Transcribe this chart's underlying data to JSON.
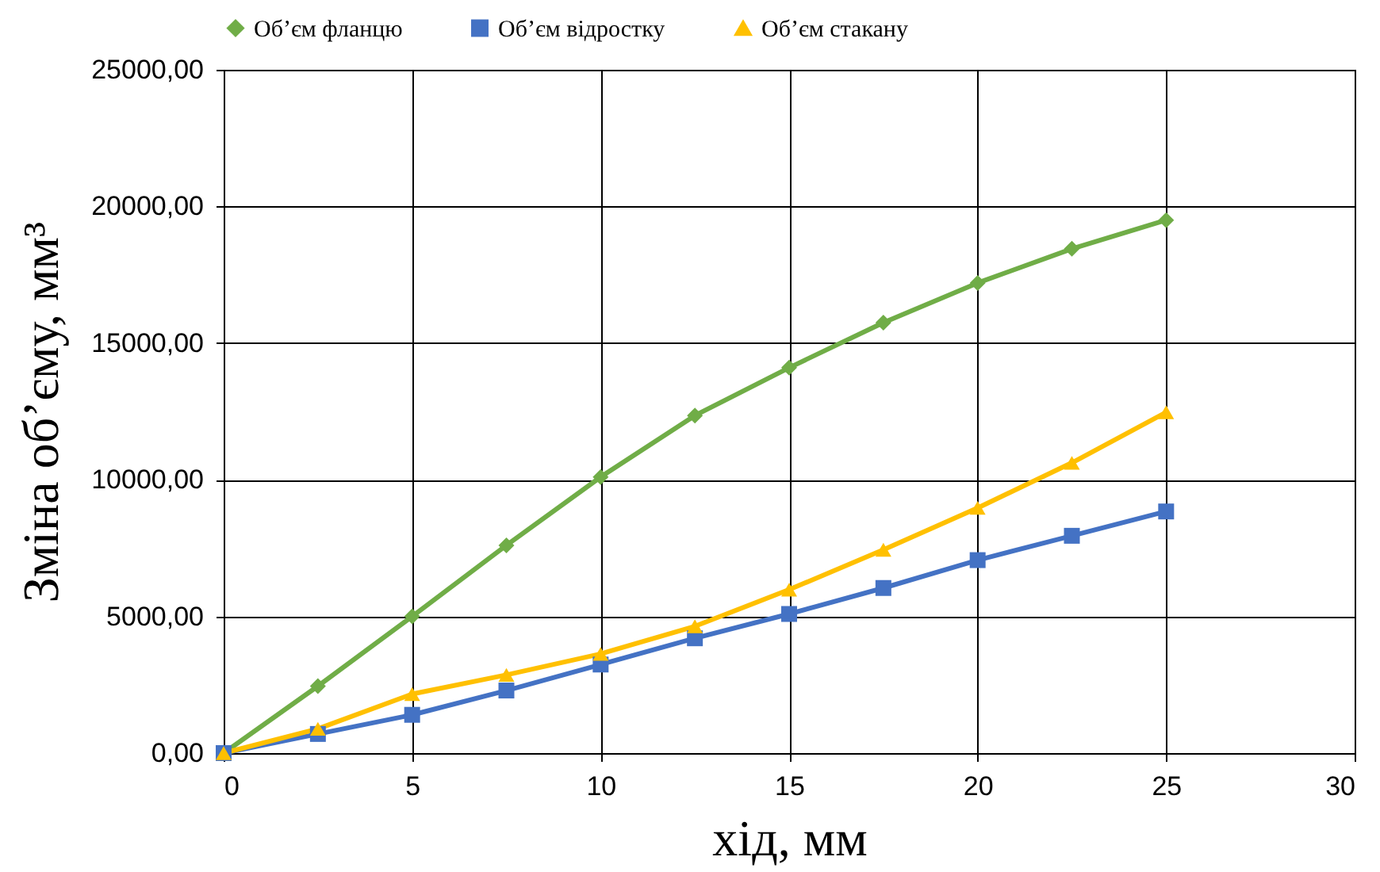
{
  "chart_data": {
    "type": "line",
    "xlabel": "хід, мм",
    "ylabel": "Зміна об’єму, мм³",
    "x": [
      0,
      2.5,
      5,
      7.5,
      10,
      12.5,
      15,
      17.5,
      20,
      22.5,
      25
    ],
    "series": [
      {
        "name": "Об’єм фланцю",
        "color": "#70ad47",
        "marker": "diamond",
        "values": [
          0,
          2450,
          5000,
          7600,
          10100,
          12350,
          14100,
          15750,
          17200,
          18450,
          19500
        ]
      },
      {
        "name": "Об’єм відростку",
        "color": "#4472c4",
        "marker": "square",
        "values": [
          0,
          700,
          1400,
          2290,
          3240,
          4200,
          5090,
          6040,
          7060,
          7950,
          8840
        ]
      },
      {
        "name": "Об’єм стакану",
        "color": "#ffc000",
        "marker": "triangle",
        "values": [
          0,
          890,
          2160,
          2860,
          3630,
          4640,
          5980,
          7440,
          8970,
          10620,
          12470
        ]
      }
    ],
    "xlim": [
      0,
      30
    ],
    "xticks": [
      0,
      5,
      10,
      15,
      20,
      25,
      30
    ],
    "ylim": [
      0,
      25000
    ],
    "yticks": [
      {
        "value": 0,
        "label": "0,00"
      },
      {
        "value": 5000,
        "label": "5000,00"
      },
      {
        "value": 10000,
        "label": "10000,00"
      },
      {
        "value": 15000,
        "label": "15000,00"
      },
      {
        "value": 20000,
        "label": "20000,00"
      },
      {
        "value": 25000,
        "label": "25000,00"
      }
    ],
    "grid": true,
    "legend": "top",
    "line_style": "solid"
  }
}
